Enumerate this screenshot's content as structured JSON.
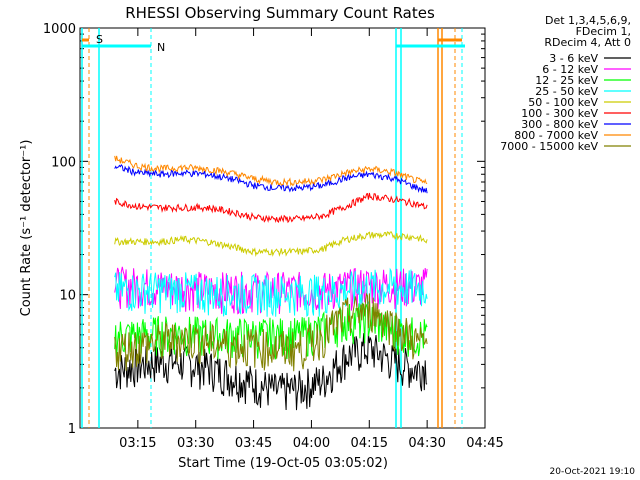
{
  "chart_data": {
    "type": "line",
    "title": "RHESSI Observing Summary Count Rates",
    "xlabel": "Start Time (19-Oct-05 03:05:02)",
    "ylabel": "Count Rate (s⁻¹ detector⁻¹)",
    "yscale": "log",
    "ylim": [
      1,
      1000
    ],
    "xlim_minutes": [
      3.0,
      4.75
    ],
    "x_ticks": [
      {
        "label": "03:15",
        "hours": 3.25
      },
      {
        "label": "03:30",
        "hours": 3.5
      },
      {
        "label": "03:45",
        "hours": 3.75
      },
      {
        "label": "04:00",
        "hours": 4.0
      },
      {
        "label": "04:15",
        "hours": 4.25
      },
      {
        "label": "04:30",
        "hours": 4.5
      },
      {
        "label": "04:45",
        "hours": 4.75
      }
    ],
    "y_ticks": [
      {
        "label": "1",
        "value": 1
      },
      {
        "label": "10",
        "value": 10
      },
      {
        "label": "100",
        "value": 100
      },
      {
        "label": "1000",
        "value": 1000
      }
    ],
    "legend_header": [
      "Det 1,3,4,5,6,9,",
      "FDecim 1,",
      "RDecim 4, Att 0"
    ],
    "legend_position": "right",
    "series": [
      {
        "name": "3 - 6 keV",
        "color": "#000000",
        "x": [
          3.15,
          3.25,
          3.35,
          3.45,
          3.55,
          3.65,
          3.75,
          3.85,
          3.95,
          4.05,
          4.15,
          4.25,
          4.35,
          4.45,
          4.5
        ],
        "y": [
          2.7,
          3,
          3.2,
          3.1,
          2.9,
          2.5,
          2.2,
          1.9,
          2,
          2.3,
          3.5,
          4,
          3.2,
          2.8,
          3
        ]
      },
      {
        "name": "6 - 12 keV",
        "color": "#ff00ff",
        "x": [
          3.15,
          3.25,
          3.35,
          3.45,
          3.55,
          3.65,
          3.75,
          3.85,
          3.95,
          4.05,
          4.15,
          4.25,
          4.35,
          4.45,
          4.5
        ],
        "y": [
          12,
          12,
          11.5,
          11.5,
          11,
          11,
          11,
          11,
          11,
          11,
          11.5,
          12,
          12,
          11.5,
          12
        ]
      },
      {
        "name": "12 - 25 keV",
        "color": "#00ff00",
        "x": [
          3.15,
          3.25,
          3.35,
          3.45,
          3.55,
          3.65,
          3.75,
          3.85,
          3.95,
          4.05,
          4.15,
          4.25,
          4.35,
          4.45,
          4.5
        ],
        "y": [
          5,
          5,
          5.2,
          5.2,
          5,
          5,
          5,
          5,
          5,
          5.5,
          6.5,
          6.5,
          5.5,
          5,
          5
        ]
      },
      {
        "name": "25 - 50 keV",
        "color": "#00ffff",
        "x": [
          3.15,
          3.25,
          3.35,
          3.45,
          3.55,
          3.65,
          3.75,
          3.85,
          3.95,
          4.05,
          4.15,
          4.25,
          4.35,
          4.45,
          4.5
        ],
        "y": [
          11,
          11,
          11,
          11,
          10.5,
          10.5,
          10.5,
          10.5,
          10.5,
          10.5,
          11,
          11.5,
          11.5,
          11.5,
          11.5
        ]
      },
      {
        "name": "50 - 100 keV",
        "color": "#cccc00",
        "x": [
          3.15,
          3.25,
          3.35,
          3.45,
          3.55,
          3.65,
          3.75,
          3.85,
          3.95,
          4.05,
          4.15,
          4.25,
          4.35,
          4.45,
          4.5
        ],
        "y": [
          25,
          25,
          25,
          26,
          25,
          23,
          21,
          21,
          21,
          22,
          26,
          28,
          28,
          27,
          25
        ]
      },
      {
        "name": "100 - 300 keV",
        "color": "#ff0000",
        "x": [
          3.15,
          3.25,
          3.35,
          3.45,
          3.55,
          3.65,
          3.75,
          3.85,
          3.95,
          4.05,
          4.15,
          4.25,
          4.35,
          4.45,
          4.5
        ],
        "y": [
          50,
          46,
          45,
          45,
          45,
          42,
          38,
          37,
          37,
          39,
          46,
          55,
          52,
          48,
          45
        ]
      },
      {
        "name": "300 - 800 keV",
        "color": "#0000ff",
        "x": [
          3.15,
          3.25,
          3.35,
          3.45,
          3.55,
          3.65,
          3.75,
          3.85,
          3.95,
          4.05,
          4.15,
          4.25,
          4.35,
          4.45,
          4.5
        ],
        "y": [
          92,
          82,
          80,
          82,
          80,
          74,
          66,
          63,
          63,
          66,
          75,
          80,
          75,
          64,
          60
        ]
      },
      {
        "name": "800 - 7000 keV",
        "color": "#ff8800",
        "x": [
          3.15,
          3.25,
          3.35,
          3.45,
          3.55,
          3.65,
          3.75,
          3.85,
          3.95,
          4.05,
          4.15,
          4.25,
          4.35,
          4.45,
          4.5
        ],
        "y": [
          105,
          92,
          88,
          90,
          88,
          82,
          74,
          70,
          70,
          73,
          82,
          88,
          83,
          72,
          68
        ]
      },
      {
        "name": "7000 - 15000 keV",
        "color": "#808000",
        "x": [
          3.15,
          3.25,
          3.35,
          3.45,
          3.55,
          3.65,
          3.75,
          3.85,
          3.95,
          4.05,
          4.15,
          4.25,
          4.35,
          4.45,
          4.5
        ],
        "y": [
          4,
          4.2,
          4.5,
          4.8,
          4.5,
          4.2,
          4.2,
          4,
          4,
          5,
          7,
          8,
          6,
          4.5,
          4.2
        ]
      }
    ],
    "markers": [
      {
        "label": "S",
        "color": "#ff8800"
      },
      {
        "label": "N",
        "color": "#00ffff"
      }
    ]
  },
  "footer": {
    "timestamp": "20-Oct-2021 19:10"
  }
}
